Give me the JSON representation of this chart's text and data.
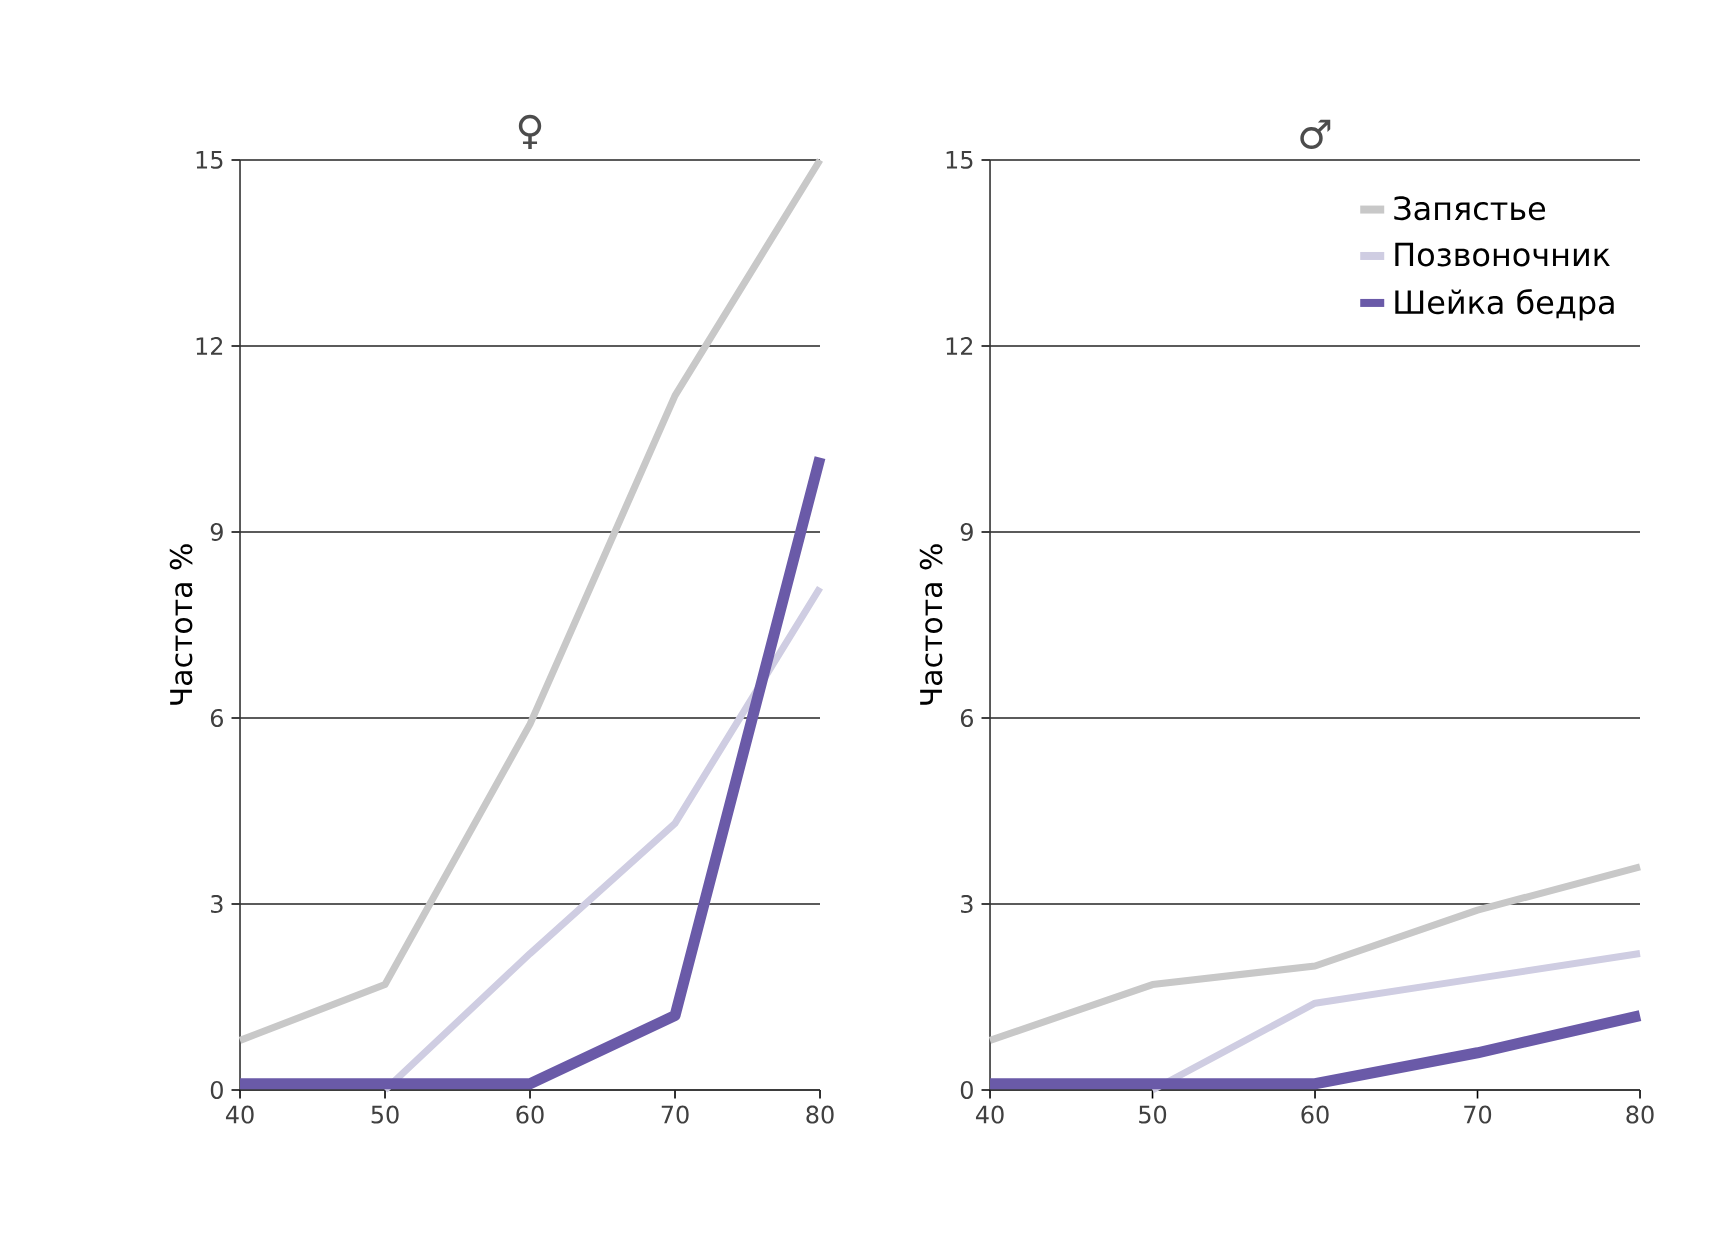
{
  "chart_data": [
    {
      "type": "line",
      "title": "♀",
      "ylabel": "Частота %",
      "x": [
        40,
        50,
        60,
        70,
        80
      ],
      "xlim": [
        40,
        80
      ],
      "xticks": [
        40,
        50,
        60,
        70,
        80
      ],
      "ylim": [
        0,
        15
      ],
      "yticks": [
        0,
        3,
        6,
        9,
        12,
        15
      ],
      "grid": "y",
      "legend": false,
      "marker": "none",
      "series": [
        {
          "color": "#c8c8c8",
          "values": [
            0.8,
            1.7,
            5.9,
            11.2,
            15
          ]
        },
        {
          "color": "#cfcde2",
          "values": [
            null,
            0,
            2.2,
            4.3,
            8.1
          ]
        },
        {
          "color": "#6a5aa8",
          "values": [
            0.1,
            0.1,
            0.1,
            1.2,
            10.2
          ]
        }
      ]
    },
    {
      "type": "line",
      "title": "♂",
      "ylabel": "Частота %",
      "x": [
        40,
        50,
        60,
        70,
        80
      ],
      "xlim": [
        40,
        80
      ],
      "xticks": [
        40,
        50,
        60,
        70,
        80
      ],
      "ylim": [
        0,
        15
      ],
      "yticks": [
        0,
        3,
        6,
        9,
        12,
        15
      ],
      "grid": "y",
      "legend": "top right",
      "marker": "none",
      "series": [
        {
          "name": "Запястье",
          "color": "#c8c8c8",
          "values": [
            0.8,
            1.7,
            2.0,
            2.9,
            3.6
          ]
        },
        {
          "name": "Позвоночник",
          "color": "#cfcde2",
          "values": [
            null,
            0,
            1.4,
            1.8,
            2.2
          ]
        },
        {
          "name": "Шейка бедра",
          "color": "#6a5aa8",
          "values": [
            0.1,
            0.1,
            0.1,
            0.6,
            1.2
          ]
        }
      ]
    }
  ]
}
